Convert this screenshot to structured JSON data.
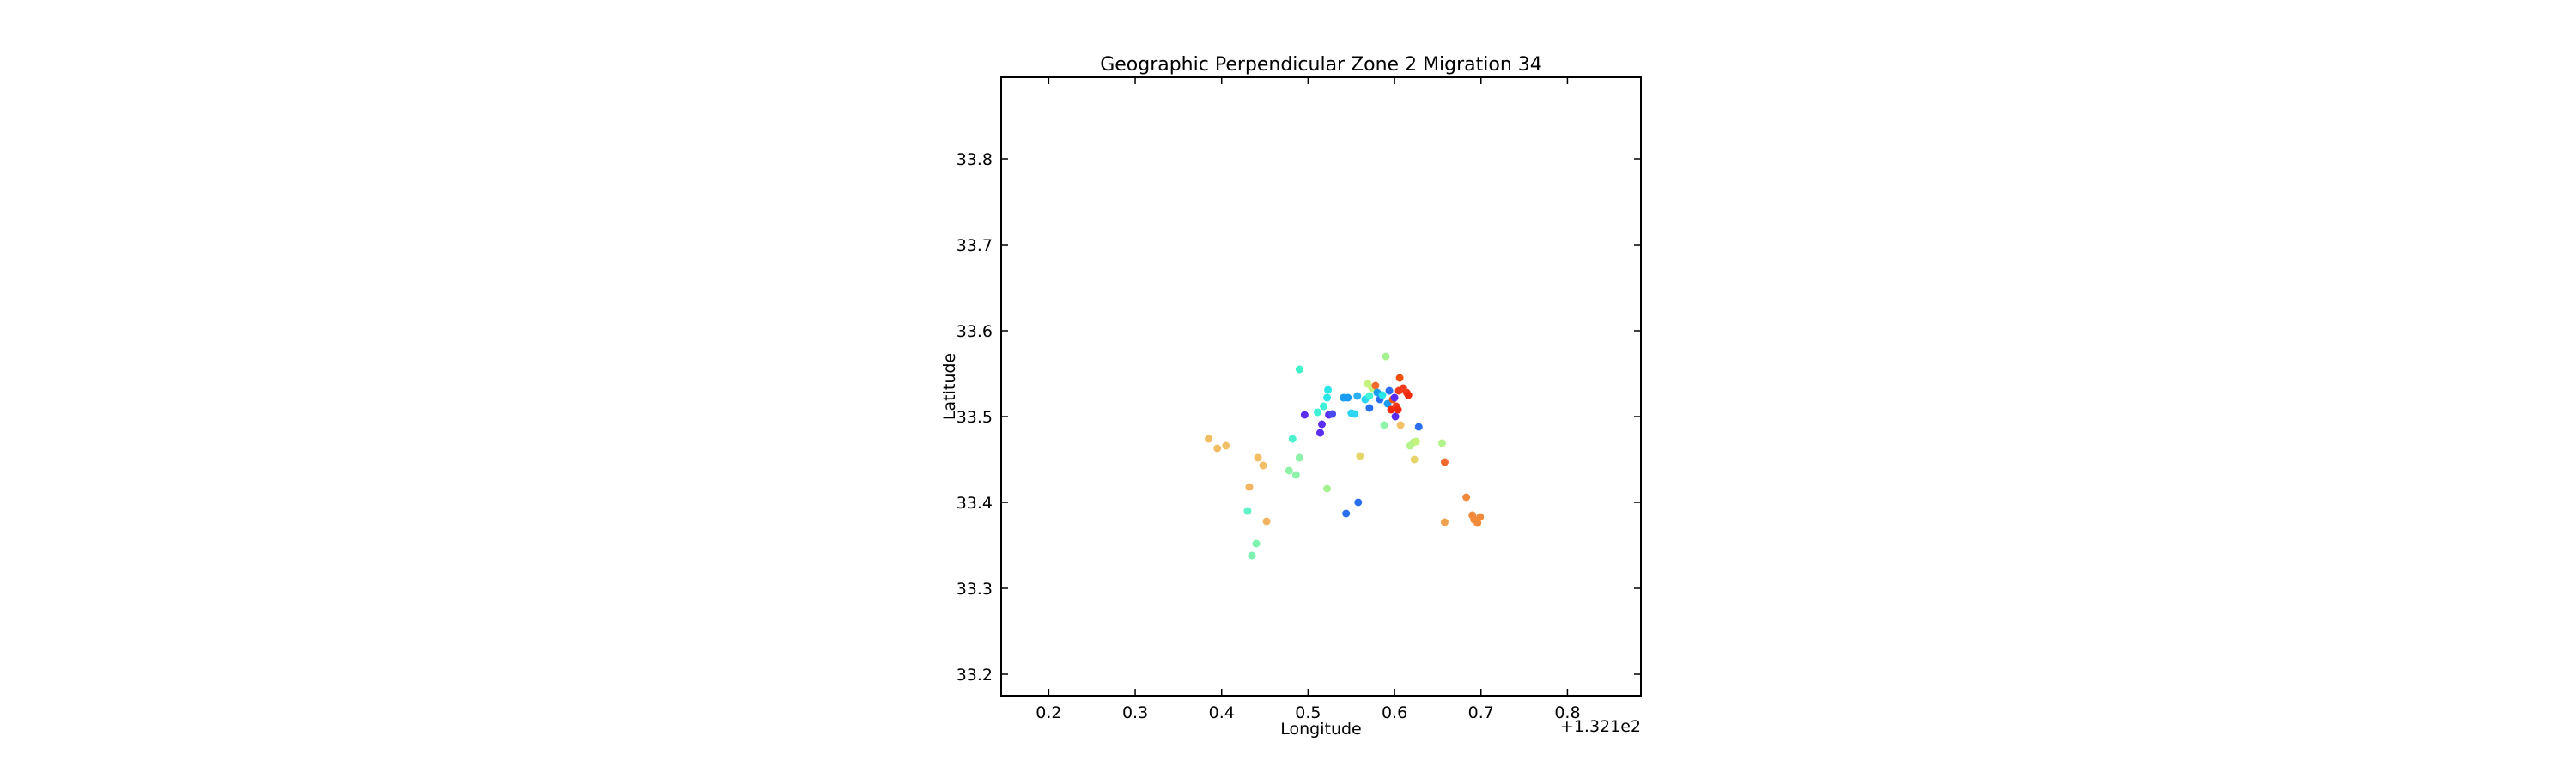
{
  "chart_data": {
    "type": "scatter",
    "title": "Geographic Perpendicular Zone 2 Migration 34",
    "xlabel": "Longitude",
    "ylabel": "Latitude",
    "x_offset_label": "+1.321e2",
    "xlim": [
      0.145,
      0.885
    ],
    "ylim": [
      33.175,
      33.895
    ],
    "xticks": [
      0.2,
      0.3,
      0.4,
      0.5,
      0.6,
      0.7,
      0.8
    ],
    "xtick_labels": [
      "0.2",
      "0.3",
      "0.4",
      "0.5",
      "0.6",
      "0.7",
      "0.8"
    ],
    "yticks": [
      33.2,
      33.3,
      33.4,
      33.5,
      33.6,
      33.7,
      33.8
    ],
    "ytick_labels": [
      "33.2",
      "33.3",
      "33.4",
      "33.5",
      "33.6",
      "33.7",
      "33.8"
    ],
    "grid": false,
    "colormap": "rainbow",
    "points": [
      {
        "x": 0.385,
        "y": 33.474,
        "color": "#f2bd63"
      },
      {
        "x": 0.395,
        "y": 33.463,
        "color": "#f2bd63"
      },
      {
        "x": 0.405,
        "y": 33.466,
        "color": "#f2c066"
      },
      {
        "x": 0.442,
        "y": 33.452,
        "color": "#f2bd63"
      },
      {
        "x": 0.448,
        "y": 33.443,
        "color": "#f2bd63"
      },
      {
        "x": 0.432,
        "y": 33.418,
        "color": "#f2b460"
      },
      {
        "x": 0.452,
        "y": 33.378,
        "color": "#f2b460"
      },
      {
        "x": 0.43,
        "y": 33.39,
        "color": "#60f2c6"
      },
      {
        "x": 0.44,
        "y": 33.352,
        "color": "#7ef2b0"
      },
      {
        "x": 0.435,
        "y": 33.338,
        "color": "#7ef2b0"
      },
      {
        "x": 0.49,
        "y": 33.555,
        "color": "#3ff2c8"
      },
      {
        "x": 0.482,
        "y": 33.474,
        "color": "#4cf2d0"
      },
      {
        "x": 0.49,
        "y": 33.452,
        "color": "#8ef2a8"
      },
      {
        "x": 0.478,
        "y": 33.437,
        "color": "#8ef2a8"
      },
      {
        "x": 0.486,
        "y": 33.432,
        "color": "#8ef2a8"
      },
      {
        "x": 0.522,
        "y": 33.416,
        "color": "#a6f290"
      },
      {
        "x": 0.496,
        "y": 33.502,
        "color": "#5a2df2"
      },
      {
        "x": 0.514,
        "y": 33.481,
        "color": "#5a2df2"
      },
      {
        "x": 0.516,
        "y": 33.491,
        "color": "#5a2df2"
      },
      {
        "x": 0.524,
        "y": 33.502,
        "color": "#5a2df2"
      },
      {
        "x": 0.528,
        "y": 33.503,
        "color": "#4a4af2"
      },
      {
        "x": 0.511,
        "y": 33.505,
        "color": "#3ff2d6"
      },
      {
        "x": 0.518,
        "y": 33.512,
        "color": "#3ff2d6"
      },
      {
        "x": 0.522,
        "y": 33.522,
        "color": "#2ae6e6"
      },
      {
        "x": 0.523,
        "y": 33.531,
        "color": "#2ae6e6"
      },
      {
        "x": 0.541,
        "y": 33.522,
        "color": "#1a9cf2"
      },
      {
        "x": 0.546,
        "y": 33.522,
        "color": "#1a9cf2"
      },
      {
        "x": 0.55,
        "y": 33.504,
        "color": "#2ad6f2"
      },
      {
        "x": 0.554,
        "y": 33.503,
        "color": "#2ad6f2"
      },
      {
        "x": 0.557,
        "y": 33.524,
        "color": "#2ab0f2"
      },
      {
        "x": 0.566,
        "y": 33.52,
        "color": "#2ad6f2"
      },
      {
        "x": 0.571,
        "y": 33.524,
        "color": "#3ff2d6"
      },
      {
        "x": 0.571,
        "y": 33.51,
        "color": "#2a6ef2"
      },
      {
        "x": 0.569,
        "y": 33.538,
        "color": "#c6f27e"
      },
      {
        "x": 0.574,
        "y": 33.533,
        "color": "#c6f27e"
      },
      {
        "x": 0.578,
        "y": 33.536,
        "color": "#f26a2d"
      },
      {
        "x": 0.58,
        "y": 33.528,
        "color": "#1a9cf2"
      },
      {
        "x": 0.583,
        "y": 33.52,
        "color": "#2a6ef2"
      },
      {
        "x": 0.586,
        "y": 33.525,
        "color": "#2ae6e6"
      },
      {
        "x": 0.588,
        "y": 33.49,
        "color": "#8ef2a8"
      },
      {
        "x": 0.59,
        "y": 33.57,
        "color": "#a6f290"
      },
      {
        "x": 0.592,
        "y": 33.515,
        "color": "#1a9cf2"
      },
      {
        "x": 0.594,
        "y": 33.53,
        "color": "#2a6ef2"
      },
      {
        "x": 0.596,
        "y": 33.508,
        "color": "#f22a0c"
      },
      {
        "x": 0.598,
        "y": 33.52,
        "color": "#f2500c"
      },
      {
        "x": 0.6,
        "y": 33.522,
        "color": "#5a2df2"
      },
      {
        "x": 0.601,
        "y": 33.5,
        "color": "#5a2df2"
      },
      {
        "x": 0.602,
        "y": 33.512,
        "color": "#f23a1c"
      },
      {
        "x": 0.604,
        "y": 33.508,
        "color": "#f22a0c"
      },
      {
        "x": 0.605,
        "y": 33.53,
        "color": "#f23a1c"
      },
      {
        "x": 0.606,
        "y": 33.545,
        "color": "#f2500c"
      },
      {
        "x": 0.607,
        "y": 33.49,
        "color": "#f2c066"
      },
      {
        "x": 0.61,
        "y": 33.533,
        "color": "#f23a1c"
      },
      {
        "x": 0.614,
        "y": 33.528,
        "color": "#f23a1c"
      },
      {
        "x": 0.616,
        "y": 33.525,
        "color": "#f22a0c"
      },
      {
        "x": 0.618,
        "y": 33.466,
        "color": "#b4f28a"
      },
      {
        "x": 0.622,
        "y": 33.47,
        "color": "#b4f28a"
      },
      {
        "x": 0.625,
        "y": 33.471,
        "color": "#c6f27e"
      },
      {
        "x": 0.623,
        "y": 33.45,
        "color": "#e6d66a"
      },
      {
        "x": 0.628,
        "y": 33.488,
        "color": "#2a6ef2"
      },
      {
        "x": 0.56,
        "y": 33.454,
        "color": "#e6d66a"
      },
      {
        "x": 0.558,
        "y": 33.4,
        "color": "#2a6ef2"
      },
      {
        "x": 0.544,
        "y": 33.387,
        "color": "#2a6ef2"
      },
      {
        "x": 0.655,
        "y": 33.469,
        "color": "#b4f28a"
      },
      {
        "x": 0.658,
        "y": 33.447,
        "color": "#f26a2d"
      },
      {
        "x": 0.658,
        "y": 33.377,
        "color": "#f2a050"
      },
      {
        "x": 0.683,
        "y": 33.406,
        "color": "#f28a3c"
      },
      {
        "x": 0.69,
        "y": 33.385,
        "color": "#f28a3c"
      },
      {
        "x": 0.692,
        "y": 33.38,
        "color": "#f28a3c"
      },
      {
        "x": 0.696,
        "y": 33.376,
        "color": "#f28a3c"
      },
      {
        "x": 0.699,
        "y": 33.383,
        "color": "#f28a3c"
      }
    ]
  }
}
